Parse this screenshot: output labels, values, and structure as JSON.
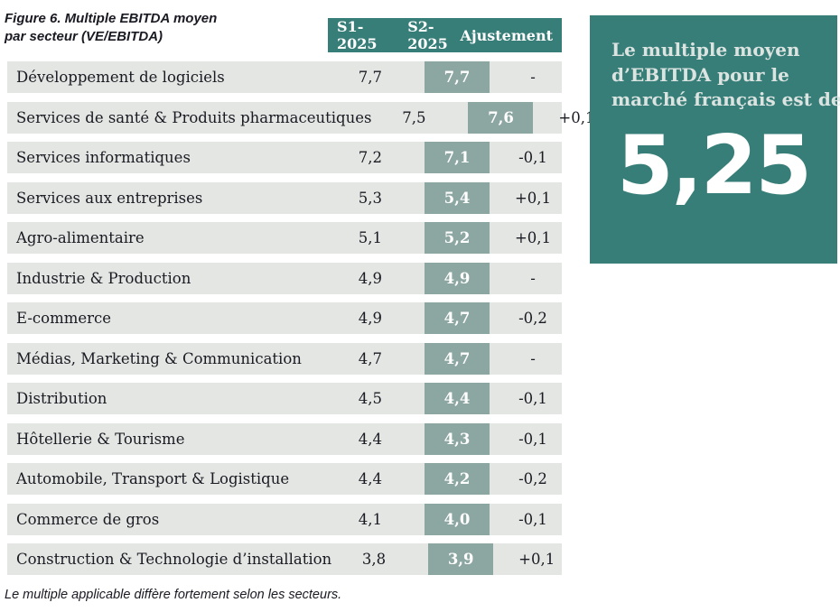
{
  "figure": {
    "title_line1": "Figure 6. Multiple EBITDA moyen",
    "title_line2": "par secteur (VE/EBITDA)",
    "footer_note": "Le multiple applicable diffère fortement selon les secteurs."
  },
  "table": {
    "column_headers": [
      "S1-2025",
      "S2-2025",
      "Ajustement"
    ],
    "rows": [
      {
        "sector": "Développement de logiciels",
        "s1": "7,7",
        "s2": "7,7",
        "adjustment": "-"
      },
      {
        "sector": "Services de santé & Produits pharmaceutiques",
        "s1": "7,5",
        "s2": "7,6",
        "adjustment": "+0,1"
      },
      {
        "sector": "Services informatiques",
        "s1": "7,2",
        "s2": "7,1",
        "adjustment": "-0,1"
      },
      {
        "sector": "Services aux entreprises",
        "s1": "5,3",
        "s2": "5,4",
        "adjustment": "+0,1"
      },
      {
        "sector": "Agro-alimentaire",
        "s1": "5,1",
        "s2": "5,2",
        "adjustment": "+0,1"
      },
      {
        "sector": "Industrie & Production",
        "s1": "4,9",
        "s2": "4,9",
        "adjustment": "-"
      },
      {
        "sector": "E-commerce",
        "s1": "4,9",
        "s2": "4,7",
        "adjustment": "-0,2"
      },
      {
        "sector": "Médias, Marketing & Communication",
        "s1": "4,7",
        "s2": "4,7",
        "adjustment": "-"
      },
      {
        "sector": "Distribution",
        "s1": "4,5",
        "s2": "4,4",
        "adjustment": "-0,1"
      },
      {
        "sector": "Hôtellerie & Tourisme",
        "s1": "4,4",
        "s2": "4,3",
        "adjustment": "-0,1"
      },
      {
        "sector": "Automobile, Transport & Logistique",
        "s1": "4,4",
        "s2": "4,2",
        "adjustment": "-0,2"
      },
      {
        "sector": "Commerce de gros",
        "s1": "4,1",
        "s2": "4,0",
        "adjustment": "-0,1"
      },
      {
        "sector": "Construction & Technologie d’installation",
        "s1": "3,8",
        "s2": "3,9",
        "adjustment": "+0,1"
      }
    ]
  },
  "panel": {
    "lines": [
      "Le multiple moyen",
      "d’EBITDA pour le",
      "marché français est de"
    ],
    "value": "5,25"
  },
  "colors": {
    "teal": "#377E79",
    "sage_highlight": "#8CA6A2",
    "row_gray": "#E3E6E2",
    "dark_text": "#1A1A23",
    "panel_text": "#DCE4E1",
    "value_white": "#FFFFFF"
  },
  "chart_data": {
    "type": "table",
    "title": "Figure 6. Multiple EBITDA moyen par secteur (VE/EBITDA)",
    "columns": [
      "Secteur",
      "S1-2025",
      "S2-2025",
      "Ajustement"
    ],
    "categories": [
      "Développement de logiciels",
      "Services de santé & Produits pharmaceutiques",
      "Services informatiques",
      "Services aux entreprises",
      "Agro-alimentaire",
      "Industrie & Production",
      "E-commerce",
      "Médias, Marketing & Communication",
      "Distribution",
      "Hôtellerie & Tourisme",
      "Automobile, Transport & Logistique",
      "Commerce de gros",
      "Construction & Technologie d’installation"
    ],
    "series": [
      {
        "name": "S1-2025",
        "values": [
          7.7,
          7.5,
          7.2,
          5.3,
          5.1,
          4.9,
          4.9,
          4.7,
          4.5,
          4.4,
          4.4,
          4.1,
          3.8
        ]
      },
      {
        "name": "S2-2025",
        "values": [
          7.7,
          7.6,
          7.1,
          5.4,
          5.2,
          4.9,
          4.7,
          4.7,
          4.4,
          4.3,
          4.2,
          4.0,
          3.9
        ]
      },
      {
        "name": "Ajustement",
        "values": [
          0,
          0.1,
          -0.1,
          0.1,
          0.1,
          0,
          -0.2,
          0,
          -0.1,
          -0.1,
          -0.2,
          -0.1,
          0.1
        ]
      }
    ],
    "annotations": {
      "market_average_label": "Le multiple moyen d’EBITDA pour le marché français est de",
      "market_average_value": 5.25
    },
    "footnote": "Le multiple applicable diffère fortement selon les secteurs."
  }
}
